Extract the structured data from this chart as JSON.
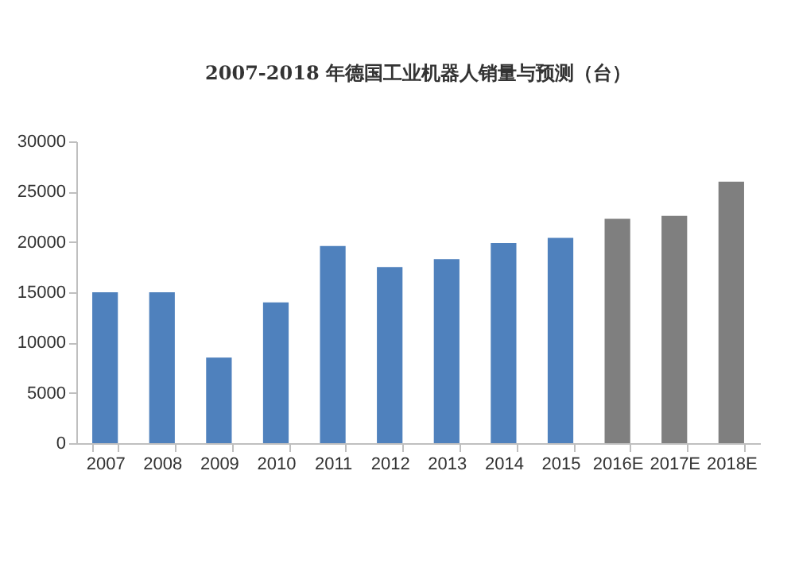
{
  "chart_data": {
    "type": "bar",
    "title": "2007-2018 年德国工业机器人销量与预测（台）",
    "categories": [
      "2007",
      "2008",
      "2009",
      "2010",
      "2011",
      "2012",
      "2013",
      "2014",
      "2015",
      "2016E",
      "2017E",
      "2018E"
    ],
    "values": [
      15000,
      15000,
      8500,
      14000,
      19600,
      17500,
      18300,
      19900,
      20400,
      22300,
      22600,
      26000
    ],
    "colors": [
      "#4f81bd",
      "#4f81bd",
      "#4f81bd",
      "#4f81bd",
      "#4f81bd",
      "#4f81bd",
      "#4f81bd",
      "#4f81bd",
      "#4f81bd",
      "#7f7f7f",
      "#7f7f7f",
      "#7f7f7f"
    ],
    "ylim": [
      0,
      30000
    ],
    "yticks": [
      0,
      5000,
      10000,
      15000,
      20000,
      25000,
      30000
    ],
    "grid": false,
    "legend": false
  }
}
